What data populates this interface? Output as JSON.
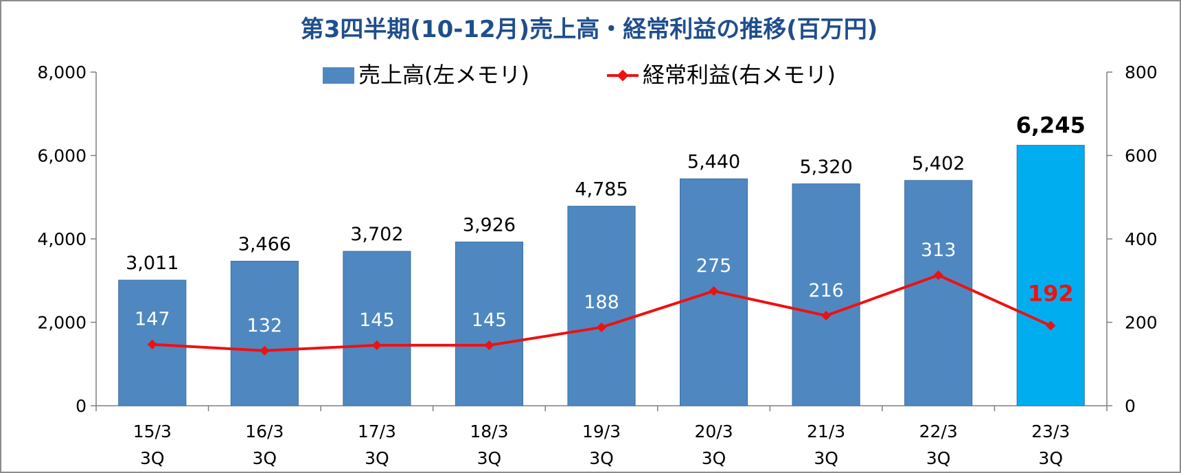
{
  "colors": {
    "title": "#1f4e8c",
    "bar": "#4f88c0",
    "bar_stroke": "#3f6f9f",
    "bar_highlight": "#00aeef",
    "line": "#ee1111",
    "line_label_highlight": "#ee1111",
    "axis": "#7f7f7f"
  },
  "chart_data": {
    "type": "bar",
    "title": "第3四半期(10-12月)売上高・経常利益の推移(百万円)",
    "categories": [
      [
        "15/3",
        "3Q"
      ],
      [
        "16/3",
        "3Q"
      ],
      [
        "17/3",
        "3Q"
      ],
      [
        "18/3",
        "3Q"
      ],
      [
        "19/3",
        "3Q"
      ],
      [
        "20/3",
        "3Q"
      ],
      [
        "21/3",
        "3Q"
      ],
      [
        "22/3",
        "3Q"
      ],
      [
        "23/3",
        "3Q"
      ]
    ],
    "series": [
      {
        "name": "売上高(左メモリ)",
        "type": "bar",
        "axis": "left",
        "values": [
          3011,
          3466,
          3702,
          3926,
          4785,
          5440,
          5320,
          5402,
          6245
        ],
        "labels": [
          "3,011",
          "3,466",
          "3,702",
          "3,926",
          "4,785",
          "5,440",
          "5,320",
          "5,402",
          "6,245"
        ]
      },
      {
        "name": "経常利益(右メモリ)",
        "type": "line",
        "axis": "right",
        "values": [
          147,
          132,
          145,
          145,
          188,
          275,
          216,
          313,
          192
        ],
        "labels": [
          "147",
          "132",
          "145",
          "145",
          "188",
          "275",
          "216",
          "313",
          "192"
        ]
      }
    ],
    "highlight_index": 8,
    "y_left": {
      "range": [
        0,
        8000
      ],
      "ticks": [
        "0",
        "2,000",
        "4,000",
        "6,000",
        "8,000"
      ]
    },
    "y_right": {
      "range": [
        0,
        800
      ],
      "ticks": [
        "0",
        "200",
        "400",
        "600",
        "800"
      ]
    },
    "grid": false,
    "legend": "top-center"
  }
}
